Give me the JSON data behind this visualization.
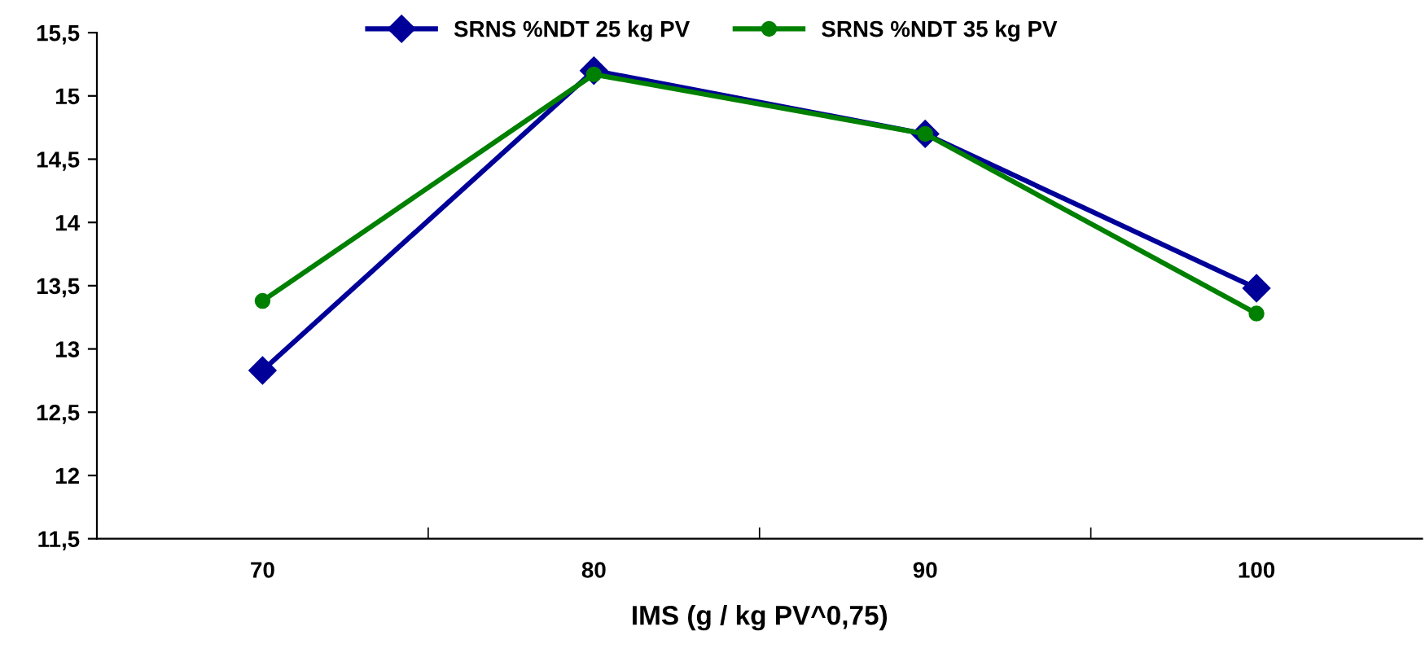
{
  "chart_data": {
    "type": "line",
    "xlabel": "IMS (g / kg PV^0,75)",
    "categories": [
      "70",
      "80",
      "90",
      "100"
    ],
    "series": [
      {
        "name": "SRNS %NDT 25 kg PV",
        "color": "#000099",
        "marker": "diamond",
        "values": [
          12.83,
          15.2,
          14.7,
          13.48
        ]
      },
      {
        "name": "SRNS %NDT 35 kg PV",
        "color": "#008000",
        "marker": "circle",
        "values": [
          13.38,
          15.17,
          14.7,
          13.28
        ]
      }
    ],
    "ylim": [
      11.5,
      15.5
    ],
    "yticks": [
      {
        "value": 11.5,
        "label": "11,5"
      },
      12,
      {
        "value": 12.5,
        "label": "12,5"
      },
      13,
      {
        "value": 13.5,
        "label": "13,5"
      },
      14,
      {
        "value": 14.5,
        "label": "14,5"
      },
      15,
      {
        "value": 15.5,
        "label": "15,5"
      }
    ],
    "grid": false,
    "legend": "top",
    "line_style": "solid"
  }
}
